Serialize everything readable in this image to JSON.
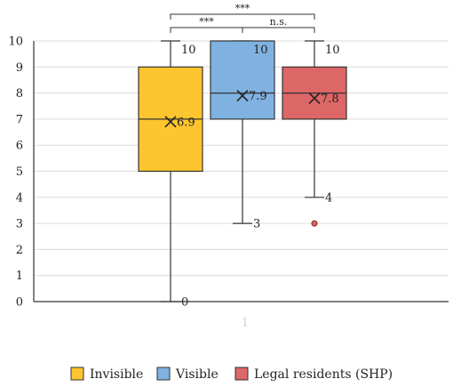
{
  "chart_data": {
    "type": "box",
    "categories": [
      "1"
    ],
    "ylim": [
      0,
      10
    ],
    "yticks": [
      0,
      1,
      2,
      3,
      4,
      5,
      6,
      7,
      8,
      9,
      10
    ],
    "grid": true,
    "legend_position": "bottom",
    "series": [
      {
        "name": "Invisible",
        "color": "#fdc52e",
        "min": 0,
        "q1": 5,
        "median": 7,
        "q3": 9,
        "max": 10,
        "mean": 6.9,
        "mean_label": "6.9",
        "max_label": "10",
        "min_label": "0",
        "outliers": []
      },
      {
        "name": "Visible",
        "color": "#7fb2e0",
        "min": 3,
        "q1": 7,
        "median": 8,
        "q3": 10,
        "max": 10,
        "mean": 7.9,
        "mean_label": "7.9",
        "max_label": "10",
        "min_label": "3",
        "outliers": []
      },
      {
        "name": "Legal residents (SHP)",
        "color": "#dd6666",
        "min": 4,
        "q1": 7,
        "median": 8,
        "q3": 9,
        "max": 10,
        "mean": 7.8,
        "mean_label": "7.8",
        "max_label": "10",
        "min_label": "4",
        "outliers": [
          3
        ]
      }
    ],
    "significance": [
      {
        "from": 0,
        "to": 1,
        "label": "***"
      },
      {
        "from": 1,
        "to": 2,
        "label": "n.s."
      },
      {
        "from": 0,
        "to": 2,
        "label": "***"
      }
    ]
  }
}
